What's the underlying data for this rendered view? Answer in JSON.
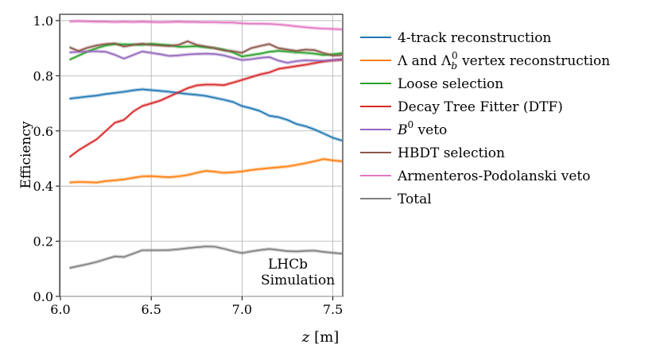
{
  "chart_data": {
    "type": "line",
    "xlabel_var": "z",
    "xlabel_unit": "[m]",
    "ylabel": "Efficiency",
    "xlim": [
      6.0,
      7.55
    ],
    "ylim": [
      0.0,
      1.02
    ],
    "xticks": [
      6.0,
      6.5,
      7.0,
      7.5
    ],
    "xtick_labels": [
      "6.0",
      "6.5",
      "7.0",
      "7.5"
    ],
    "yticks": [
      0.0,
      0.2,
      0.4,
      0.6,
      0.8,
      1.0
    ],
    "ytick_labels": [
      "0.0",
      "0.2",
      "0.4",
      "0.6",
      "0.8",
      "1.0"
    ],
    "grid": true,
    "legend_position": "outside-right",
    "annotation": [
      "LHCb",
      "Simulation"
    ],
    "x": [
      6.05,
      6.1,
      6.15,
      6.2,
      6.25,
      6.3,
      6.35,
      6.4,
      6.45,
      6.5,
      6.55,
      6.6,
      6.65,
      6.7,
      6.75,
      6.8,
      6.85,
      6.9,
      6.95,
      7.0,
      7.05,
      7.1,
      7.15,
      7.2,
      7.25,
      7.3,
      7.35,
      7.4,
      7.45,
      7.5,
      7.55
    ],
    "series": [
      {
        "name": "4-track reconstruction",
        "color": "#1f77b4",
        "values": [
          0.717,
          0.721,
          0.725,
          0.728,
          0.734,
          0.738,
          0.742,
          0.747,
          0.751,
          0.748,
          0.745,
          0.742,
          0.738,
          0.734,
          0.731,
          0.727,
          0.72,
          0.713,
          0.705,
          0.69,
          0.682,
          0.672,
          0.655,
          0.65,
          0.64,
          0.625,
          0.617,
          0.605,
          0.59,
          0.575,
          0.565
        ]
      },
      {
        "name": "Λ and Λ_b^0 vertex reconstruction",
        "color": "#ff7f0e",
        "values": [
          0.413,
          0.415,
          0.414,
          0.413,
          0.418,
          0.421,
          0.424,
          0.43,
          0.435,
          0.436,
          0.434,
          0.432,
          0.435,
          0.44,
          0.448,
          0.455,
          0.452,
          0.448,
          0.45,
          0.453,
          0.458,
          0.462,
          0.465,
          0.468,
          0.471,
          0.477,
          0.483,
          0.49,
          0.498,
          0.493,
          0.49
        ]
      },
      {
        "name": "Loose selection",
        "color": "#2ca02c",
        "values": [
          0.858,
          0.873,
          0.888,
          0.9,
          0.91,
          0.915,
          0.914,
          0.913,
          0.912,
          0.916,
          0.913,
          0.911,
          0.905,
          0.906,
          0.907,
          0.903,
          0.9,
          0.895,
          0.885,
          0.87,
          0.875,
          0.88,
          0.887,
          0.89,
          0.888,
          0.885,
          0.883,
          0.88,
          0.875,
          0.878,
          0.882
        ]
      },
      {
        "name": "Decay Tree Fitter (DTF)",
        "color": "#d62728",
        "values": [
          0.505,
          0.53,
          0.55,
          0.57,
          0.6,
          0.63,
          0.64,
          0.67,
          0.69,
          0.7,
          0.71,
          0.725,
          0.74,
          0.755,
          0.765,
          0.768,
          0.768,
          0.766,
          0.775,
          0.785,
          0.795,
          0.805,
          0.812,
          0.825,
          0.83,
          0.835,
          0.84,
          0.846,
          0.852,
          0.856,
          0.858
        ]
      },
      {
        "name": "B^0 veto",
        "color": "#9467bd",
        "values": [
          0.885,
          0.887,
          0.888,
          0.889,
          0.887,
          0.876,
          0.862,
          0.875,
          0.888,
          0.883,
          0.878,
          0.872,
          0.874,
          0.877,
          0.879,
          0.88,
          0.879,
          0.874,
          0.865,
          0.857,
          0.86,
          0.865,
          0.868,
          0.855,
          0.847,
          0.853,
          0.856,
          0.855,
          0.854,
          0.857,
          0.86
        ]
      },
      {
        "name": "HBDT selection",
        "color": "#8c564b",
        "values": [
          0.903,
          0.89,
          0.902,
          0.91,
          0.915,
          0.917,
          0.906,
          0.912,
          0.916,
          0.912,
          0.91,
          0.908,
          0.912,
          0.925,
          0.912,
          0.906,
          0.9,
          0.892,
          0.889,
          0.883,
          0.9,
          0.908,
          0.915,
          0.9,
          0.895,
          0.89,
          0.895,
          0.893,
          0.882,
          0.873,
          0.875
        ]
      },
      {
        "name": "Armenteros-Podolanski veto",
        "color": "#e377c2",
        "values": [
          0.997,
          0.998,
          0.997,
          0.996,
          0.996,
          0.995,
          0.996,
          0.995,
          0.996,
          0.995,
          0.994,
          0.995,
          0.996,
          0.995,
          0.995,
          0.994,
          0.994,
          0.993,
          0.993,
          0.99,
          0.989,
          0.989,
          0.988,
          0.986,
          0.983,
          0.979,
          0.976,
          0.973,
          0.971,
          0.97,
          0.968
        ]
      },
      {
        "name": "Total",
        "color": "#7f7f7f",
        "values": [
          0.103,
          0.11,
          0.117,
          0.125,
          0.135,
          0.145,
          0.143,
          0.155,
          0.167,
          0.167,
          0.167,
          0.168,
          0.171,
          0.175,
          0.178,
          0.181,
          0.18,
          0.173,
          0.164,
          0.157,
          0.163,
          0.168,
          0.172,
          0.168,
          0.164,
          0.163,
          0.165,
          0.166,
          0.161,
          0.158,
          0.155
        ]
      }
    ]
  }
}
